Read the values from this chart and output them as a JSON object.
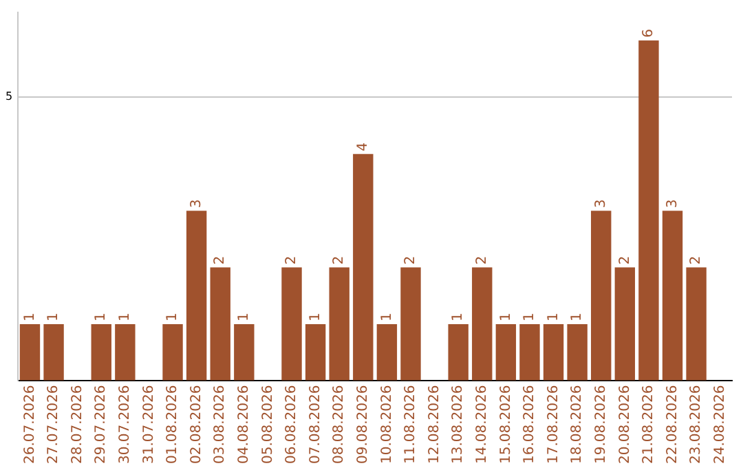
{
  "chart_data": {
    "type": "bar",
    "categories": [
      "26.07.2026",
      "27.07.2026",
      "28.07.2026",
      "29.07.2026",
      "30.07.2026",
      "31.07.2026",
      "01.08.2026",
      "02.08.2026",
      "03.08.2026",
      "04.08.2026",
      "05.08.2026",
      "06.08.2026",
      "07.08.2026",
      "08.08.2026",
      "09.08.2026",
      "10.08.2026",
      "11.08.2026",
      "12.08.2026",
      "13.08.2026",
      "14.08.2026",
      "15.08.2026",
      "16.08.2026",
      "17.08.2026",
      "18.08.2026",
      "19.08.2026",
      "20.08.2026",
      "21.08.2026",
      "22.08.2026",
      "23.08.2026",
      "24.08.2026"
    ],
    "values": [
      1,
      1,
      0,
      1,
      1,
      0,
      1,
      3,
      2,
      1,
      0,
      2,
      1,
      2,
      4,
      1,
      2,
      0,
      1,
      2,
      1,
      1,
      1,
      1,
      3,
      2,
      6,
      3,
      2,
      0
    ],
    "value_labels": [
      "1",
      "1",
      null,
      "1",
      "1",
      null,
      "1",
      "3",
      "2",
      "1",
      null,
      "2",
      "1",
      "2",
      "4",
      "1",
      "2",
      null,
      "1",
      "2",
      "1",
      "1",
      "1",
      "1",
      "3",
      "2",
      "6",
      "3",
      "2",
      null
    ],
    "color": "#a0522d",
    "ylim": [
      0,
      6.5
    ],
    "yticks": [
      {
        "value": 0,
        "label": null
      },
      5
    ],
    "grid": "y",
    "legend": false
  }
}
